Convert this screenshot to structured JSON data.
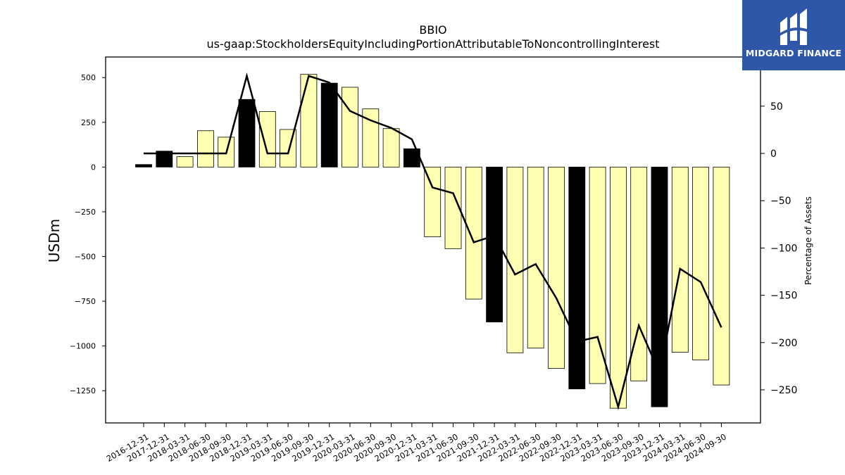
{
  "brand": {
    "name": "MIDGARD FINANCE",
    "bg_color": "#2f57a8"
  },
  "chart_data": {
    "type": "bar",
    "title": "BBIO",
    "subtitle": "us-gaap:StockholdersEquityIncludingPortionAttributableToNoncontrollingInterest",
    "ylabel": "USDm",
    "y2label": "Percentage of Assets",
    "ylim": [
      -1430,
      615
    ],
    "y2lim": [
      -285,
      102
    ],
    "yticks": [
      -1250,
      -1000,
      -750,
      -500,
      -250,
      0,
      250,
      500
    ],
    "y2ticks": [
      -250,
      -200,
      -150,
      -100,
      -50,
      0,
      50
    ],
    "categories": [
      "2016-12-31",
      "2017-12-31",
      "2018-03-31",
      "2018-06-30",
      "2018-09-30",
      "2018-12-31",
      "2019-03-31",
      "2019-06-30",
      "2019-09-30",
      "2019-12-31",
      "2020-03-31",
      "2020-06-30",
      "2020-09-30",
      "2020-12-31",
      "2021-03-31",
      "2021-06-30",
      "2021-09-30",
      "2021-12-31",
      "2022-03-31",
      "2022-06-30",
      "2022-09-30",
      "2022-12-31",
      "2023-03-31",
      "2023-06-30",
      "2023-09-30",
      "2023-12-31",
      "2024-03-31",
      "2024-06-30",
      "2024-09-30"
    ],
    "series": [
      {
        "type": "bar",
        "values": [
          14,
          89,
          58,
          203,
          167,
          378,
          310,
          210,
          518,
          469,
          446,
          325,
          215,
          102,
          -390,
          -456,
          -738,
          -866,
          -1038,
          -1012,
          -1125,
          -1240,
          -1210,
          -1348,
          -1195,
          -1340,
          -1035,
          -1078,
          -1218
        ],
        "annual": [
          true,
          true,
          false,
          false,
          false,
          true,
          false,
          false,
          false,
          true,
          false,
          false,
          false,
          true,
          false,
          false,
          false,
          true,
          false,
          false,
          false,
          true,
          false,
          false,
          false,
          true,
          false,
          false,
          false
        ]
      },
      {
        "type": "line",
        "axis": "right",
        "values": [
          0,
          0,
          0,
          0,
          0,
          82,
          0,
          0,
          82,
          75,
          45,
          35,
          27,
          15,
          -36,
          -42,
          -94,
          -87,
          -128,
          -117,
          -153,
          -199,
          -194,
          -268,
          -182,
          -232,
          -122,
          -136,
          -184
        ]
      }
    ],
    "colors": {
      "annual_bar": "#000000",
      "quarter_bar": "#ffffb3",
      "bar_edge": "#000000",
      "line": "#000000"
    }
  }
}
